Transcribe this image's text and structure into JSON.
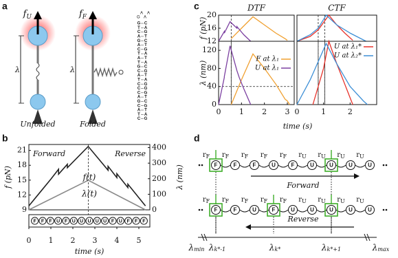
{
  "panel_labels": [
    "a",
    "b",
    "c",
    "d"
  ],
  "panel_a": {
    "unfolded": {
      "force": {
        "base": "f",
        "sub": "U"
      },
      "extension": "λ",
      "caption": "Unfolded"
    },
    "folded": {
      "force": {
        "base": "f",
        "sub": "F"
      },
      "extension": "λ",
      "caption": "Folded"
    },
    "hairpin": {
      "loop": [
        "G",
        "A",
        "A",
        "A"
      ],
      "pairs": [
        [
          "G",
          "C"
        ],
        [
          "T",
          "A"
        ],
        [
          "C",
          "G"
        ],
        [
          "A",
          "T"
        ],
        [
          "G",
          "C"
        ],
        [
          "A",
          "T"
        ],
        [
          "C",
          "G"
        ],
        [
          "T",
          "A"
        ],
        [
          "A",
          "T"
        ],
        [
          "T",
          "A"
        ],
        [
          "G",
          "C"
        ],
        [
          "C",
          "G"
        ],
        [
          "A",
          "T"
        ],
        [
          "T",
          "A"
        ],
        [
          "C",
          "G"
        ],
        [
          "C",
          "G"
        ],
        [
          "C",
          "G"
        ],
        [
          "A",
          "T"
        ],
        [
          "G",
          "C"
        ],
        [
          "C",
          "G"
        ],
        [
          "A",
          "T"
        ],
        [
          "T",
          "A"
        ],
        [
          "C",
          "G"
        ]
      ]
    }
  },
  "chart_data": [
    {
      "type": "line",
      "xlabel": "time (s)",
      "ylabel": "f (pN)",
      "y2label": "λ (nm)",
      "xlim": [
        0,
        5.5
      ],
      "xticks": [
        0,
        1,
        2,
        3,
        4,
        5
      ],
      "ylim": [
        9,
        22.2
      ],
      "yticks": [
        9,
        12,
        15,
        18,
        21
      ],
      "y2lim": [
        0,
        420
      ],
      "y2ticks": [
        0,
        100,
        200,
        300,
        400
      ],
      "annotations": [
        "Forward",
        "Reverse"
      ],
      "vlines": [
        2.7
      ],
      "states": [
        "F",
        "F",
        "F",
        "U",
        "F",
        "U",
        "U",
        "U",
        "U",
        "U",
        "F",
        "U",
        "F",
        "F",
        "F"
      ],
      "series": [
        {
          "name": "f(t)",
          "color": "#222222",
          "x": [
            0,
            0.5,
            1.0,
            1.35,
            1.35,
            1.75,
            1.75,
            2.7,
            3.6,
            3.6,
            4.0,
            4.0,
            4.5,
            4.5,
            5.3
          ],
          "values": [
            9.8,
            12.5,
            15.2,
            17.2,
            16.2,
            18.2,
            17.5,
            21.8,
            17.0,
            17.8,
            15.5,
            16.3,
            13.5,
            14.2,
            9.8
          ]
        },
        {
          "name": "λ(t)",
          "color": "#8a8a8a",
          "axis": "y2",
          "x": [
            0,
            2.7,
            5.3
          ],
          "values": [
            0,
            190,
            0
          ]
        }
      ]
    },
    {
      "type": "line",
      "title": "DTF",
      "ylabel": "f (pN)",
      "xlim": [
        0,
        3.3
      ],
      "ylim": [
        12,
        20
      ],
      "yticks": [
        12,
        16,
        20
      ],
      "vlines": [
        0.55
      ],
      "series": [
        {
          "color": "#f0a030",
          "x": [
            0.55,
            1.0,
            1.5,
            2.0,
            2.5,
            2.9,
            3.0
          ],
          "values": [
            12.8,
            16,
            19.5,
            17,
            14.5,
            12.8,
            12.3
          ]
        },
        {
          "color": "#7b3fa0",
          "x": [
            0,
            0.25,
            0.25,
            0.5,
            0.8,
            0.8,
            1.1,
            1.4
          ],
          "values": [
            12,
            15,
            14.5,
            18,
            16,
            16.5,
            14,
            12
          ]
        }
      ]
    },
    {
      "type": "line",
      "ylabel": "λ (nm)",
      "xlabel": "time (s)",
      "xlim": [
        0,
        3.3
      ],
      "xticks": [
        0,
        1,
        2,
        3
      ],
      "ylim": [
        0,
        140
      ],
      "yticks": [
        0,
        40,
        80,
        120
      ],
      "vlines": [
        0.55
      ],
      "hlines": [
        40
      ],
      "legend": "center right",
      "series": [
        {
          "name": "F at λ₁",
          "color": "#f0a030",
          "x": [
            0.55,
            1.0,
            1.5,
            2.0,
            2.5,
            2.9,
            3.0,
            3.1
          ],
          "values": [
            0,
            55,
            112,
            80,
            45,
            12,
            8,
            0
          ]
        },
        {
          "name": "U at λ₁",
          "color": "#7b3fa0",
          "x": [
            0,
            0.25,
            0.25,
            0.5,
            0.8,
            0.9,
            1.1,
            1.4
          ],
          "values": [
            0,
            60,
            62,
            130,
            75,
            60,
            35,
            0
          ]
        }
      ]
    },
    {
      "type": "line",
      "title": "CTF",
      "xlim": [
        0,
        3.0
      ],
      "ylim": [
        12,
        20
      ],
      "vlines": [
        0.8,
        1.05
      ],
      "series": [
        {
          "color": "#e8322a",
          "x": [
            0,
            0.5,
            0.8,
            1.2,
            1.5,
            1.8,
            2.1
          ],
          "values": [
            12,
            13.5,
            15.5,
            20,
            17,
            14.5,
            12.3
          ]
        },
        {
          "color": "#3d8fd6",
          "x": [
            0,
            0.5,
            0.8,
            1.1,
            1.5,
            2.0,
            2.6
          ],
          "values": [
            12,
            14,
            16,
            20,
            17,
            14.5,
            12
          ]
        }
      ]
    },
    {
      "type": "line",
      "xlim": [
        0,
        3.0
      ],
      "xticks": [
        0,
        1,
        2
      ],
      "ylim": [
        0,
        140
      ],
      "vlines": [
        0.8,
        1.05
      ],
      "legend": "upper right",
      "series": [
        {
          "name": "U at λ₁*",
          "color": "#e8322a",
          "x": [
            0.6,
            1.0,
            1.2,
            1.5,
            1.8,
            2.1
          ],
          "values": [
            0,
            80,
            140,
            90,
            45,
            0
          ]
        },
        {
          "name": "U at λ₂*",
          "color": "#3d8fd6",
          "x": [
            0,
            0.5,
            1.1,
            1.5,
            2.0,
            2.5,
            2.65
          ],
          "values": [
            0,
            55,
            135,
            90,
            40,
            8,
            0
          ]
        }
      ]
    }
  ],
  "panel_d": {
    "rate_symbol": "r",
    "rows": [
      {
        "states": [
          "F",
          "F",
          "F",
          "U",
          "F",
          "U",
          "U",
          "U",
          "U"
        ],
        "rates": [
          "F",
          "F",
          "F",
          "F",
          "F",
          "U",
          "U",
          "U",
          "U"
        ],
        "arrow": "Forward"
      },
      {
        "states": [
          "F",
          "F",
          "U",
          "F",
          "U",
          "U",
          "U",
          "U",
          "U"
        ],
        "rates": [
          "F",
          "F",
          "F",
          "F",
          "F",
          "U",
          "U",
          "U",
          "U"
        ],
        "arrow": "Reverse"
      }
    ],
    "positions": [
      {
        "base": "λ",
        "sub": "min"
      },
      {
        "base": "λ",
        "sub": "k*-1"
      },
      {
        "base": "λ",
        "sub": "k*"
      },
      {
        "base": "λ",
        "sub": "k*+1"
      },
      {
        "base": "λ",
        "sub": "max"
      }
    ]
  }
}
